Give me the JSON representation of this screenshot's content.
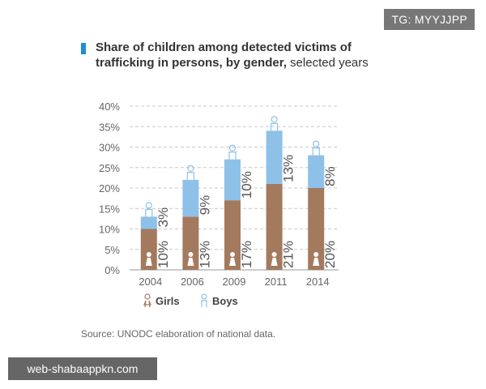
{
  "badge": "TG: MYYJJPP",
  "watermark": "web-shabaappkn.com",
  "title": {
    "bold": "Share of children among detected victims of trafficking in persons, by gender,",
    "normal": " selected years"
  },
  "source": "Source: UNODC elaboration of national data.",
  "colors": {
    "girls": "#a47a5e",
    "boys": "#8ec1e8",
    "accent": "#1e8fd6"
  },
  "chart_data": {
    "type": "bar",
    "stacked": true,
    "title": "Share of children among detected victims of trafficking in persons, by gender, selected years",
    "categories": [
      "2004",
      "2006",
      "2009",
      "2011",
      "2014"
    ],
    "series": [
      {
        "name": "Girls",
        "values": [
          10,
          13,
          17,
          21,
          20
        ],
        "labels": [
          "10%",
          "13%",
          "17%",
          "21%",
          "20%"
        ]
      },
      {
        "name": "Boys",
        "values": [
          3,
          9,
          10,
          13,
          8
        ],
        "labels": [
          "3%",
          "9%",
          "10%",
          "13%",
          "8%"
        ]
      }
    ],
    "yticks": [
      "0%",
      "5%",
      "10%",
      "15%",
      "20%",
      "25%",
      "30%",
      "35%",
      "40%"
    ],
    "ylim": [
      0,
      40
    ],
    "grid": "dashed",
    "legend": [
      "Girls",
      "Boys"
    ],
    "legend_position": "bottom-left"
  }
}
